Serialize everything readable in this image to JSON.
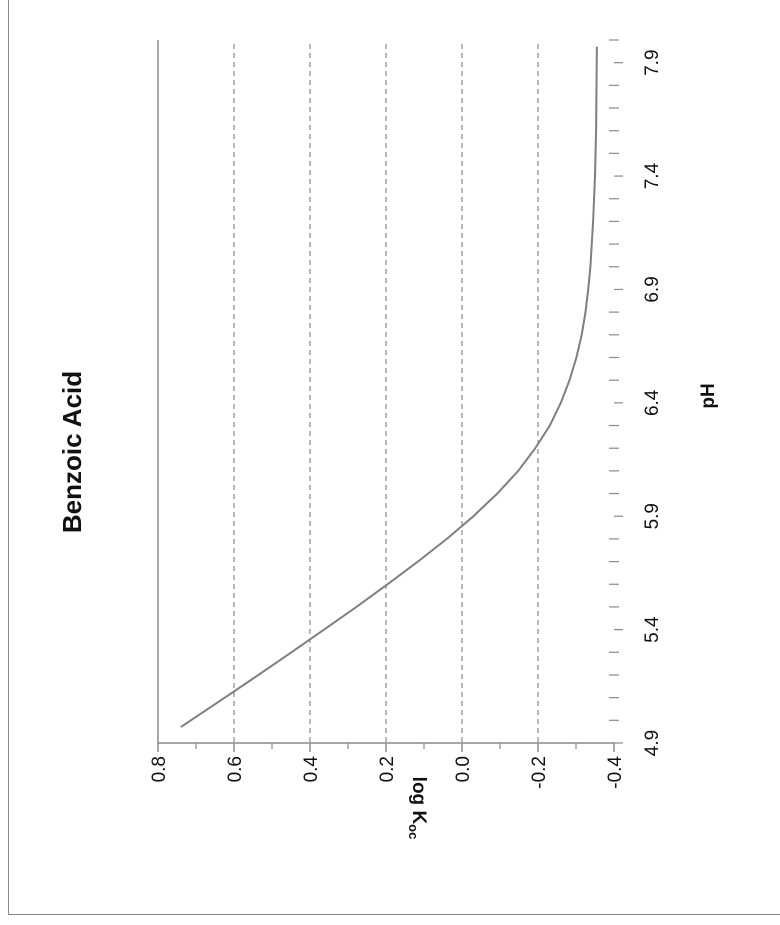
{
  "chart_data": {
    "type": "line",
    "orientation": "rotated-90-ccw",
    "title": "Benzoic Acid",
    "xlabel": "pH",
    "ylabel": "log K",
    "ylabel_subscript": "oc",
    "xlim": [
      4.9,
      8.0
    ],
    "ylim": [
      -0.4,
      0.8
    ],
    "x_ticks": [
      "4.9",
      "5.4",
      "5.9",
      "6.4",
      "6.9",
      "7.4",
      "7.9"
    ],
    "y_ticks": [
      "0.8",
      "0.6",
      "0.4",
      "0.2",
      "0.0",
      "-0.2",
      "-0.4"
    ],
    "grid": "dashed horizontal major gridlines",
    "line_color": "#7f7f7f",
    "series": [
      {
        "x": [
          4.97,
          5.1,
          5.2,
          5.3,
          5.4,
          5.5,
          5.6,
          5.7,
          5.8,
          5.9,
          6.0,
          6.1,
          6.2,
          6.3,
          6.4,
          6.5,
          6.6,
          6.7,
          6.8,
          6.9,
          7.0,
          7.2,
          7.4,
          7.6,
          7.8,
          7.97
        ],
        "y": [
          0.74,
          0.624,
          0.536,
          0.449,
          0.363,
          0.278,
          0.196,
          0.116,
          0.04,
          -0.03,
          -0.093,
          -0.148,
          -0.193,
          -0.231,
          -0.26,
          -0.283,
          -0.301,
          -0.315,
          -0.325,
          -0.332,
          -0.338,
          -0.345,
          -0.35,
          -0.353,
          -0.354,
          -0.355
        ]
      }
    ]
  }
}
